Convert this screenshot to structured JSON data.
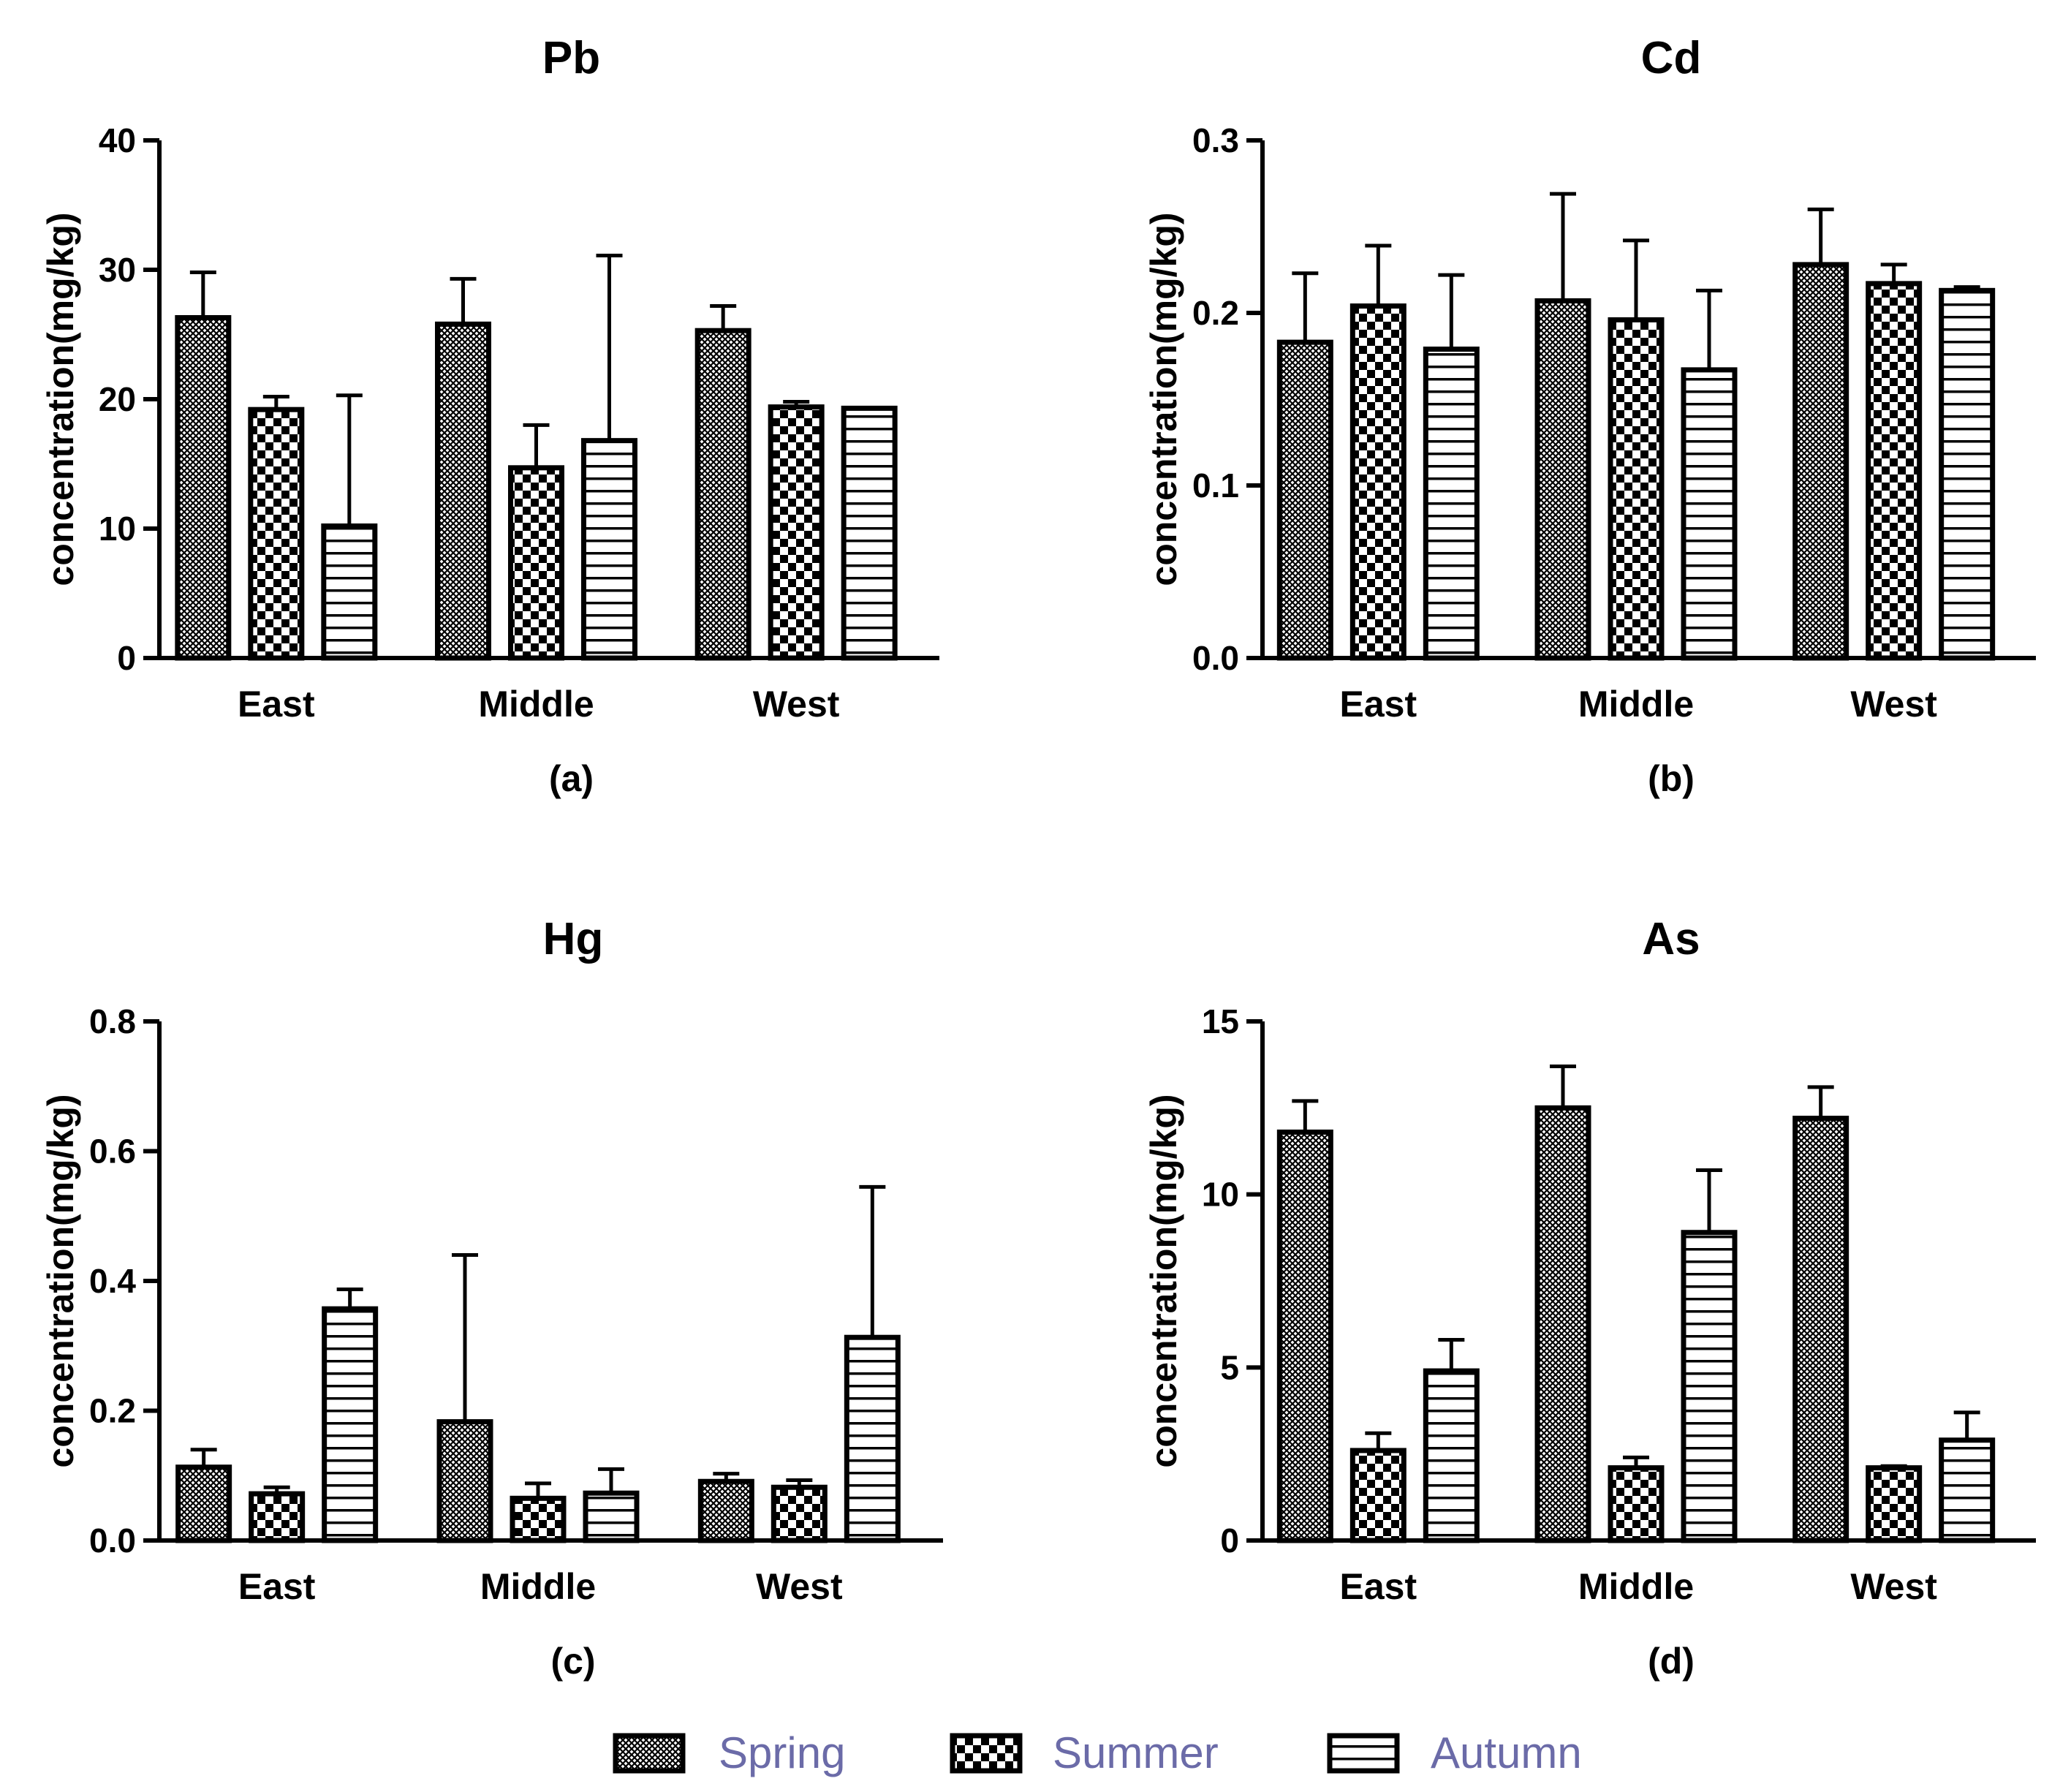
{
  "chart_data": [
    {
      "type": "bar",
      "title": "Pb",
      "caption": "(a)",
      "xlabel": "",
      "ylabel": "concentration(mg/kg)",
      "ylim": [
        0,
        40
      ],
      "yticks": [
        0,
        10,
        20,
        30,
        40
      ],
      "ytick_labels": [
        "0",
        "10",
        "20",
        "30",
        "40"
      ],
      "categories": [
        "East",
        "Middle",
        "West"
      ],
      "series": [
        {
          "name": "Spring",
          "values": [
            26.3,
            25.8,
            25.3
          ],
          "errors": [
            3.5,
            3.5,
            1.9
          ]
        },
        {
          "name": "Summer",
          "values": [
            19.2,
            14.7,
            19.4
          ],
          "errors": [
            1.0,
            3.3,
            0.4
          ]
        },
        {
          "name": "Autumn",
          "values": [
            10.2,
            16.8,
            19.3
          ],
          "errors": [
            10.1,
            14.3,
            0.0
          ]
        }
      ]
    },
    {
      "type": "bar",
      "title": "Cd",
      "caption": "(b)",
      "xlabel": "",
      "ylabel": "concentration(mg/kg)",
      "ylim": [
        0,
        0.3
      ],
      "yticks": [
        0,
        0.1,
        0.2,
        0.3
      ],
      "ytick_labels": [
        "0.0",
        "0.1",
        "0.2",
        "0.3"
      ],
      "categories": [
        "East",
        "Middle",
        "West"
      ],
      "series": [
        {
          "name": "Spring",
          "values": [
            0.183,
            0.207,
            0.228
          ],
          "errors": [
            0.04,
            0.062,
            0.032
          ]
        },
        {
          "name": "Summer",
          "values": [
            0.204,
            0.196,
            0.217
          ],
          "errors": [
            0.035,
            0.046,
            0.011
          ]
        },
        {
          "name": "Autumn",
          "values": [
            0.179,
            0.167,
            0.213
          ],
          "errors": [
            0.043,
            0.046,
            0.002
          ]
        }
      ]
    },
    {
      "type": "bar",
      "title": "Hg",
      "caption": "(c)",
      "xlabel": "",
      "ylabel": "concentration(mg/kg)",
      "ylim": [
        0,
        0.8
      ],
      "yticks": [
        0,
        0.2,
        0.4,
        0.6,
        0.8
      ],
      "ytick_labels": [
        "0.0",
        "0.2",
        "0.4",
        "0.6",
        "0.8"
      ],
      "categories": [
        "East",
        "Middle",
        "West"
      ],
      "series": [
        {
          "name": "Spring",
          "values": [
            0.113,
            0.183,
            0.091
          ],
          "errors": [
            0.027,
            0.257,
            0.012
          ]
        },
        {
          "name": "Summer",
          "values": [
            0.072,
            0.065,
            0.082
          ],
          "errors": [
            0.01,
            0.023,
            0.011
          ]
        },
        {
          "name": "Autumn",
          "values": [
            0.357,
            0.073,
            0.313
          ],
          "errors": [
            0.03,
            0.037,
            0.232
          ]
        }
      ]
    },
    {
      "type": "bar",
      "title": "As",
      "caption": "(d)",
      "xlabel": "",
      "ylabel": "concentration(mg/kg)",
      "ylim": [
        0,
        15
      ],
      "yticks": [
        0,
        5,
        10,
        15
      ],
      "ytick_labels": [
        "0",
        "5",
        "10",
        "15"
      ],
      "categories": [
        "East",
        "Middle",
        "West"
      ],
      "series": [
        {
          "name": "Spring",
          "values": [
            11.8,
            12.5,
            12.2
          ],
          "errors": [
            0.9,
            1.2,
            0.9
          ]
        },
        {
          "name": "Summer",
          "values": [
            2.6,
            2.1,
            2.1
          ],
          "errors": [
            0.5,
            0.3,
            0.05
          ]
        },
        {
          "name": "Autumn",
          "values": [
            4.9,
            8.9,
            2.9
          ],
          "errors": [
            0.9,
            1.8,
            0.8
          ]
        }
      ]
    }
  ],
  "legend": {
    "position": "bottom-center",
    "items": [
      {
        "label": "Spring",
        "pattern": "crosshatch-fine"
      },
      {
        "label": "Summer",
        "pattern": "checker"
      },
      {
        "label": "Autumn",
        "pattern": "horizontal-lines"
      }
    ]
  },
  "colors": {
    "axis": "#000000",
    "bar_outline": "#000000",
    "legend_text": "#6b6ba8",
    "background": "#ffffff"
  }
}
